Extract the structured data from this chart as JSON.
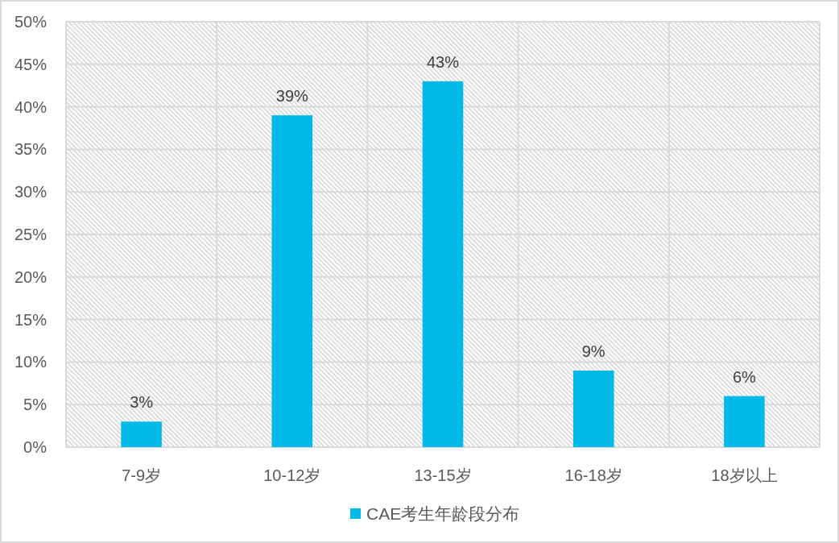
{
  "chart_data": {
    "type": "bar",
    "categories": [
      "7-9岁",
      "10-12岁",
      "13-15岁",
      "16-18岁",
      "18岁以上"
    ],
    "series": [
      {
        "name": "CAE考生年龄段分布",
        "color": "#00b9e8",
        "values": [
          3,
          39,
          43,
          9,
          6
        ]
      }
    ],
    "ylim": [
      0,
      50
    ],
    "yticks": [
      {
        "value": 0,
        "label": "0%"
      },
      {
        "value": 5,
        "label": "5%"
      },
      {
        "value": 10,
        "label": "10%"
      },
      {
        "value": 15,
        "label": "15%"
      },
      {
        "value": 20,
        "label": "20%"
      },
      {
        "value": 25,
        "label": "25%"
      },
      {
        "value": 30,
        "label": "30%"
      },
      {
        "value": 35,
        "label": "35%"
      },
      {
        "value": 40,
        "label": "40%"
      },
      {
        "value": 45,
        "label": "45%"
      },
      {
        "value": 50,
        "label": "50%"
      }
    ],
    "value_labels": [
      "3%",
      "39%",
      "43%",
      "9%",
      "6%"
    ],
    "grid": true,
    "legend": "bottom"
  }
}
